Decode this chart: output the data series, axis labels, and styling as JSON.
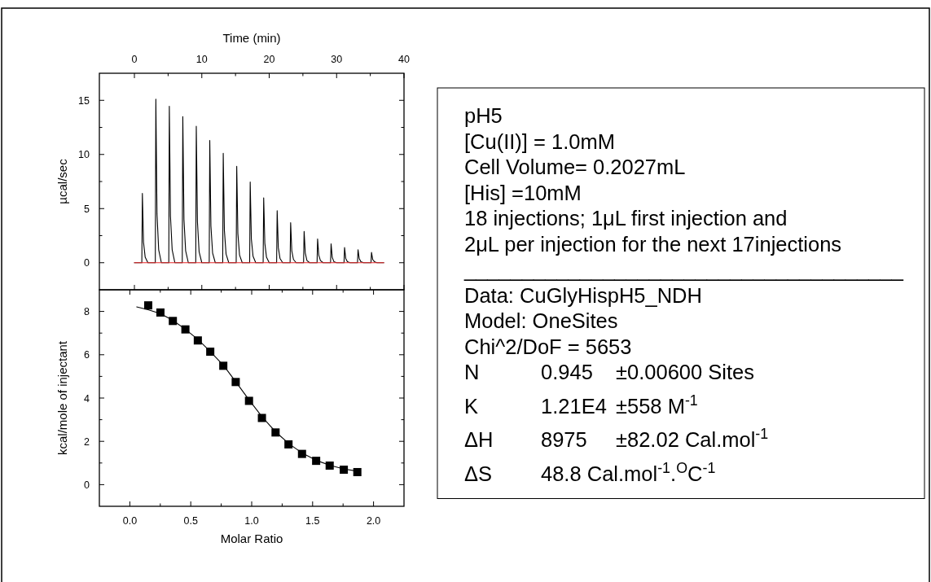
{
  "chart_data": [
    {
      "type": "line",
      "xlabel": "Time (min)",
      "ylabel": "µcal/sec",
      "xlim": [
        -5.2,
        40
      ],
      "xticks": [
        0,
        {
          "value": 5,
          "label": null
        },
        10,
        {
          "value": 15,
          "label": null
        },
        20,
        {
          "value": 25,
          "label": null
        },
        30,
        {
          "value": 35,
          "label": null
        },
        40
      ],
      "ylim": [
        -2.5,
        17.5
      ],
      "yticks": [
        0,
        {
          "value": 2.5,
          "label": null
        },
        5,
        {
          "value": 7.5,
          "label": null
        },
        10,
        {
          "value": 12.5,
          "label": null
        },
        15
      ],
      "series": [
        {
          "color": "#000000",
          "x": [
            0,
            1.1,
            1.18,
            1.35,
            1.6,
            2.0,
            3.1,
            3.18,
            3.35,
            3.6,
            4.0,
            5.1,
            5.18,
            5.35,
            5.6,
            6.0,
            7.1,
            7.18,
            7.35,
            7.6,
            8.0,
            9.1,
            9.18,
            9.35,
            9.6,
            10.0,
            11.1,
            11.18,
            11.35,
            11.6,
            12.0,
            13.1,
            13.18,
            13.35,
            13.6,
            14.0,
            15.1,
            15.18,
            15.35,
            15.6,
            16.0,
            17.1,
            17.18,
            17.35,
            17.6,
            18.0,
            19.1,
            19.18,
            19.35,
            19.6,
            20.0,
            21.1,
            21.18,
            21.35,
            21.6,
            22.0,
            23.1,
            23.18,
            23.35,
            23.6,
            24.0,
            25.1,
            25.18,
            25.35,
            25.6,
            26.0,
            27.1,
            27.18,
            27.35,
            27.6,
            28.0,
            29.1,
            29.18,
            29.35,
            29.6,
            30.0,
            31.1,
            31.18,
            31.35,
            31.6,
            32.0,
            33.1,
            33.18,
            33.35,
            33.6,
            34.0,
            35.1,
            35.18,
            35.35,
            35.6,
            36.0,
            37
          ],
          "values": [
            0,
            0,
            6.4,
            1.9,
            0.5,
            0,
            0,
            15.1,
            4.5,
            1.2,
            0,
            0,
            14.45,
            4.3,
            1.2,
            0,
            0,
            13.5,
            4.0,
            1.1,
            0,
            0,
            12.6,
            3.8,
            1.0,
            0,
            0,
            11.3,
            3.4,
            0.9,
            0,
            0,
            10.1,
            3.0,
            0.8,
            0,
            0,
            8.9,
            2.7,
            0.7,
            0,
            0,
            7.45,
            2.2,
            0.6,
            0,
            0,
            6.0,
            1.8,
            0.5,
            0,
            0,
            4.8,
            1.4,
            0.4,
            0,
            0,
            3.7,
            1.1,
            0.3,
            0,
            0,
            2.9,
            0.9,
            0.2,
            0,
            0,
            2.2,
            0.7,
            0.2,
            0,
            0,
            1.75,
            0.5,
            0.1,
            0,
            0,
            1.4,
            0.4,
            0.1,
            0,
            0,
            1.2,
            0.4,
            0.1,
            0,
            0,
            0.95,
            0.3,
            0.1,
            0,
            0
          ]
        },
        {
          "color": "#e8292b",
          "x": [
            0,
            37
          ],
          "values": [
            0,
            0
          ]
        }
      ]
    },
    {
      "type": "scatter",
      "xlabel": "Molar Ratio",
      "ylabel": "kcal/mole of injectant",
      "marker": "square",
      "xlim": [
        -0.25,
        2.25
      ],
      "xticks": [
        {
          "value": 0,
          "label": "0.0"
        },
        {
          "value": 0.25,
          "label": null
        },
        {
          "value": 0.5,
          "label": "0.5"
        },
        {
          "value": 0.75,
          "label": null
        },
        {
          "value": 1,
          "label": "1.0"
        },
        {
          "value": 1.25,
          "label": null
        },
        {
          "value": 1.5,
          "label": "1.5"
        },
        {
          "value": 1.75,
          "label": null
        },
        {
          "value": 2,
          "label": "2.0"
        }
      ],
      "ylim": [
        -1,
        9
      ],
      "yticks": [
        0,
        {
          "value": 1,
          "label": null
        },
        2,
        {
          "value": 3,
          "label": null
        },
        4,
        {
          "value": 5,
          "label": null
        },
        6,
        {
          "value": 7,
          "label": null
        },
        8
      ],
      "series": [
        {
          "type": "scatter",
          "color": "#000000",
          "x": [
            0.151,
            0.251,
            0.353,
            0.456,
            0.558,
            0.66,
            0.767,
            0.869,
            0.978,
            1.084,
            1.196,
            1.302,
            1.413,
            1.529,
            1.64,
            1.756,
            1.867
          ],
          "values": [
            8.28,
            7.95,
            7.56,
            7.17,
            6.66,
            6.14,
            5.49,
            4.74,
            3.87,
            3.08,
            2.41,
            1.86,
            1.42,
            1.1,
            0.88,
            0.69,
            0.58
          ]
        },
        {
          "type": "line",
          "marker": "none",
          "color": "#000000",
          "x": [
            0.056,
            0.15,
            0.25,
            0.35,
            0.45,
            0.56,
            0.66,
            0.77,
            0.87,
            0.98,
            1.09,
            1.2,
            1.31,
            1.42,
            1.53,
            1.65,
            1.76,
            1.87
          ],
          "values": [
            8.21,
            8.08,
            7.9,
            7.6,
            7.2,
            6.7,
            6.15,
            5.5,
            4.75,
            3.9,
            3.1,
            2.42,
            1.87,
            1.44,
            1.12,
            0.88,
            0.72,
            0.62
          ]
        }
      ]
    },
    {
      "type": "other",
      "annotations": [
        "pH5",
        "[Cu(II)] = 1.0mM",
        "Cell Volume= 0.2027mL",
        "[His] =10mM",
        "18 injections; 1μL first injection and",
        "2μL per injection for the next 17injections",
        "______________________________________",
        "Data: CuGlyHispH5_NDH",
        "Model: OneSites",
        "Chi^2/DoF = 5653",
        "N\t0.945\t±0.00600 Sites",
        "K\t1.21E4\t±558 M$^{-1}$",
        "ΔH\t8975\t±82.02 Cal.mol$^{-1}$",
        "ΔS\t48.8 Cal.mol$^{-1}$.$^{O}$C$^{-1}$"
      ]
    }
  ]
}
